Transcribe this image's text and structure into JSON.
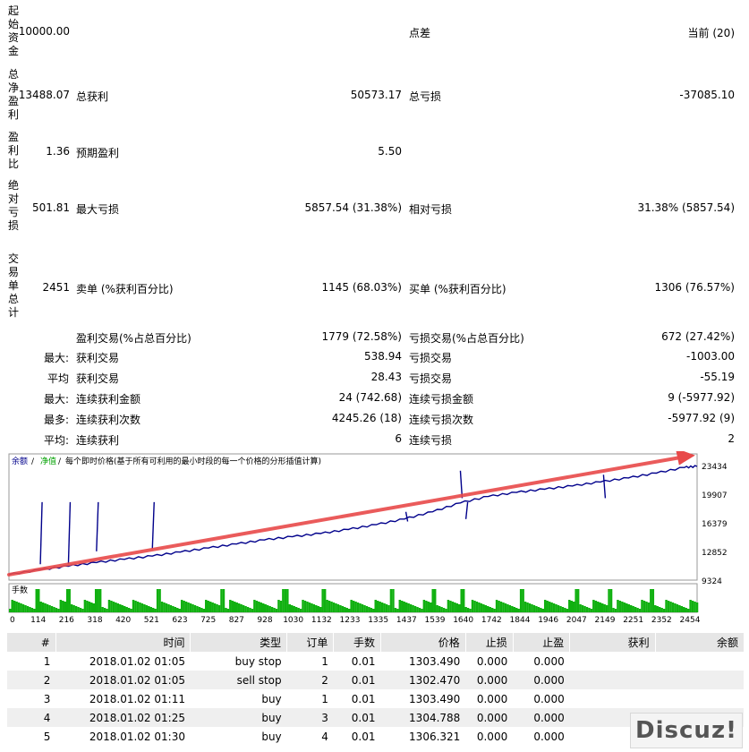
{
  "summary_rows": [
    {
      "vlabel": "起始资金",
      "top": 5,
      "height": 66,
      "value": "10000.00",
      "c2_label": "",
      "c2_value": "",
      "c3_label": "点差",
      "c3_value": "当前 (20)",
      "y": 36
    },
    {
      "vlabel": "总净盈利",
      "top": 76,
      "height": 62,
      "value": "13488.07",
      "c2_label": "总获利",
      "c2_value": "50573.17",
      "c3_label": "总亏损",
      "c3_value": "-37085.10",
      "y": 107
    },
    {
      "vlabel": "盈利比",
      "top": 146,
      "height": 48,
      "value": "1.36",
      "c2_label": "预期盈利",
      "c2_value": "5.50",
      "c3_label": "",
      "c3_value": "",
      "y": 170
    },
    {
      "vlabel": "绝对亏损",
      "top": 200,
      "height": 64,
      "value": "501.81",
      "c2_label": "最大亏损",
      "c2_value": "5857.54 (31.38%)",
      "c3_label": "相对亏损",
      "c3_value": "31.38% (5857.54)",
      "y": 233
    },
    {
      "vlabel": "交易单总计",
      "top": 282,
      "height": 80,
      "value": "2451",
      "c2_label": "卖单 (%获利百分比)",
      "c2_value": "1145 (68.03%)",
      "c3_label": "买单 (%获利百分比)",
      "c3_value": "1306 (76.57%)",
      "y": 322
    }
  ],
  "detail_rows": [
    {
      "prefix": "",
      "c2_label": "盈利交易(%占总百分比)",
      "c2_value": "1779 (72.58%)",
      "c3_label": "亏损交易(%占总百分比)",
      "c3_value": "672 (27.42%)",
      "y": 377
    },
    {
      "prefix": "最大:",
      "c2_label": "获利交易",
      "c2_value": "538.94",
      "c3_label": "亏损交易",
      "c3_value": "-1003.00",
      "y": 399
    },
    {
      "prefix": "平均",
      "c2_label": "获利交易",
      "c2_value": "28.43",
      "c3_label": "亏损交易",
      "c3_value": "-55.19",
      "y": 422
    },
    {
      "prefix": "最大:",
      "c2_label": "连续获利金额",
      "c2_value": "24 (742.68)",
      "c3_label": "连续亏损金额",
      "c3_value": "9 (-5977.92)",
      "y": 445
    },
    {
      "prefix": "最多:",
      "c2_label": "连续获利次数",
      "c2_value": "4245.26 (18)",
      "c3_label": "连续亏损次数",
      "c3_value": "-5977.92 (9)",
      "y": 468
    },
    {
      "prefix": "平均:",
      "c2_label": "连续获利",
      "c2_value": "6",
      "c3_label": "连续亏损",
      "c3_value": "2",
      "y": 491
    }
  ],
  "chart_data": {
    "type": "line",
    "header": {
      "balance": "余额",
      "sep1": " / ",
      "equity": "净值",
      "sep2": " / ",
      "desc": "每个即时价格(基于所有可利用的最小时段的每一个价格的分形插值计算)"
    },
    "yticks": [
      "23434",
      "19907",
      "16379",
      "12852",
      "9324"
    ],
    "ylim": [
      9324,
      23434
    ],
    "xticks": [
      "0",
      "114",
      "216",
      "318",
      "420",
      "521",
      "623",
      "725",
      "827",
      "928",
      "1030",
      "1132",
      "1233",
      "1335",
      "1437",
      "1539",
      "1640",
      "1742",
      "1844",
      "1946",
      "2047",
      "2149",
      "2251",
      "2352",
      "2454"
    ],
    "xlim": [
      0,
      2500
    ],
    "balance": [
      [
        0,
        10000
      ],
      [
        114,
        10600
      ],
      [
        216,
        11050
      ],
      [
        318,
        11500
      ],
      [
        420,
        11900
      ],
      [
        521,
        12300
      ],
      [
        623,
        12800
      ],
      [
        725,
        13300
      ],
      [
        827,
        13800
      ],
      [
        928,
        14300
      ],
      [
        1030,
        14700
      ],
      [
        1132,
        15100
      ],
      [
        1233,
        15600
      ],
      [
        1335,
        16200
      ],
      [
        1437,
        16900
      ],
      [
        1539,
        17800
      ],
      [
        1640,
        18900
      ],
      [
        1742,
        19700
      ],
      [
        1844,
        20200
      ],
      [
        1946,
        20600
      ],
      [
        2047,
        21000
      ],
      [
        2149,
        21500
      ],
      [
        2251,
        22000
      ],
      [
        2352,
        22600
      ],
      [
        2454,
        23300
      ],
      [
        2500,
        23434
      ]
    ],
    "equity_spikes": [
      [
        114,
        11300
      ],
      [
        216,
        11300
      ],
      [
        318,
        12900
      ],
      [
        521,
        13200
      ],
      [
        1640,
        22900
      ],
      [
        1660,
        16900
      ],
      [
        1442,
        17800
      ],
      [
        2160,
        22400
      ]
    ],
    "trend_arrow": {
      "from": [
        0,
        10000
      ],
      "to": [
        2454,
        24700
      ]
    },
    "volume_label": "手数",
    "volume_spikes": [
      100,
      210,
      320,
      540,
      770,
      1000,
      1140,
      1390,
      1540,
      1645,
      1860,
      2060,
      2180,
      2330
    ]
  },
  "trades": {
    "headers": [
      "#",
      "时间",
      "类型",
      "订单",
      "手数",
      "价格",
      "止损",
      "止盈",
      "获利",
      "余额"
    ],
    "rows": [
      [
        "1",
        "2018.01.02 01:05",
        "buy stop",
        "1",
        "0.01",
        "1303.490",
        "0.000",
        "0.000",
        "",
        ""
      ],
      [
        "2",
        "2018.01.02 01:05",
        "sell stop",
        "2",
        "0.01",
        "1302.470",
        "0.000",
        "0.000",
        "",
        ""
      ],
      [
        "3",
        "2018.01.02 01:11",
        "buy",
        "1",
        "0.01",
        "1303.490",
        "0.000",
        "0.000",
        "",
        ""
      ],
      [
        "4",
        "2018.01.02 01:25",
        "buy",
        "3",
        "0.01",
        "1304.788",
        "0.000",
        "0.000",
        "",
        ""
      ],
      [
        "5",
        "2018.01.02 01:30",
        "buy",
        "4",
        "0.01",
        "1306.321",
        "0.000",
        "0.000",
        "",
        ""
      ]
    ]
  },
  "watermark": "Discuz!",
  "colors": {
    "balance": "#00008b",
    "equity": "#00a000",
    "arrow": "#e84a4a",
    "volume": "#10b010"
  }
}
